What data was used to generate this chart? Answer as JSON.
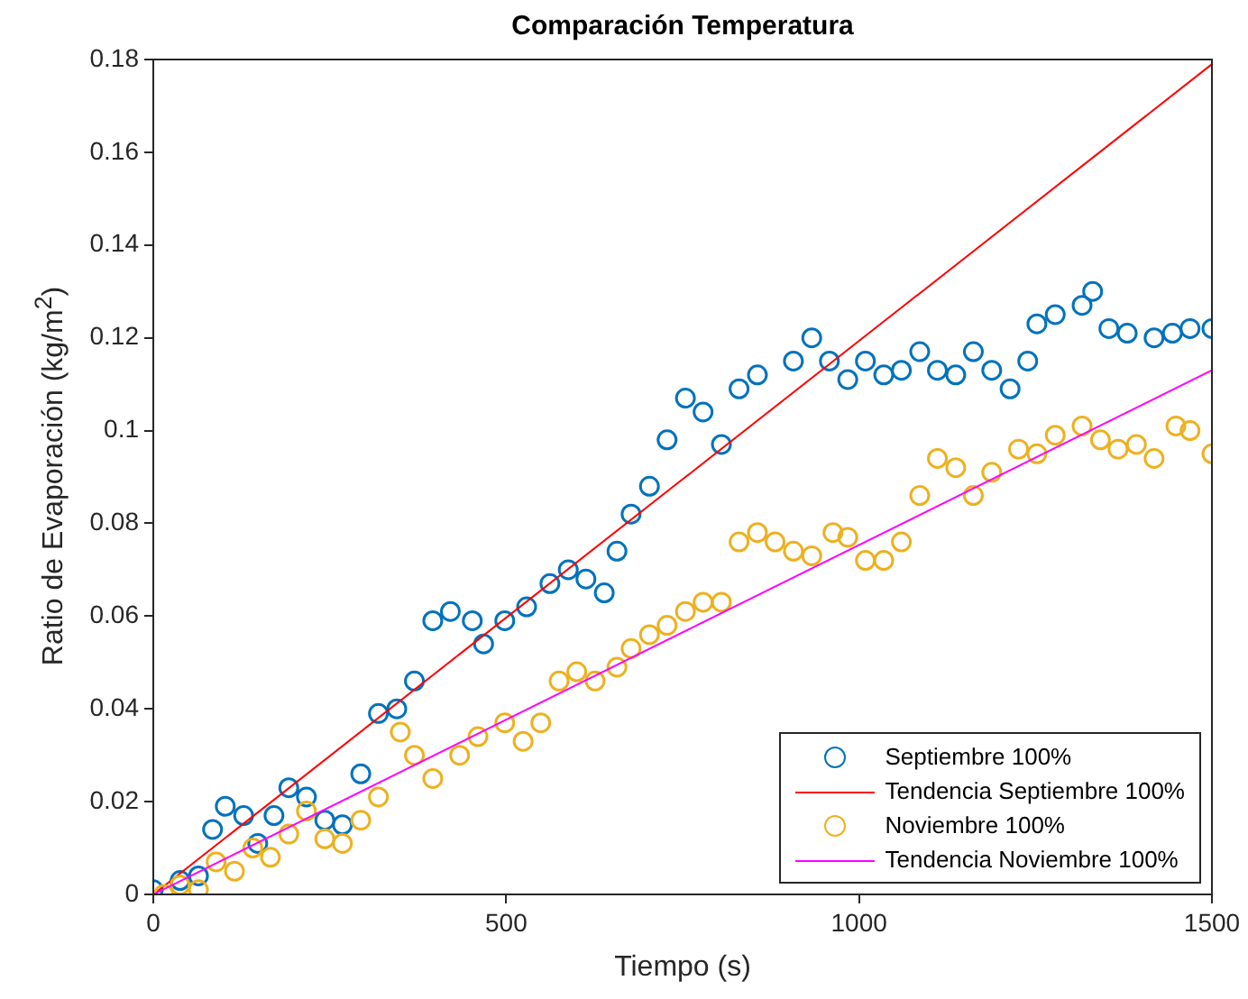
{
  "chart_data": {
    "type": "scatter",
    "title": "Comparación Temperatura",
    "xlabel": "Tiempo (s)",
    "ylabel": "Ratio de Evaporación (kg/m$^{2}$)",
    "xlim": [
      0,
      1500
    ],
    "xticks": [
      0,
      500,
      1000,
      1500
    ],
    "ylim": [
      0,
      0.18
    ],
    "yticks": [
      0,
      0.02,
      0.04,
      0.06,
      0.08,
      0.1,
      0.12,
      0.14,
      0.16,
      0.18
    ],
    "grid": false,
    "legend": "bottom right",
    "marker": "circle",
    "series": [
      {
        "name": "Septiembre 100%",
        "color": "#0072bd",
        "x": [
          0,
          38,
          64,
          84,
          102,
          128,
          148,
          171,
          192,
          217,
          243,
          268,
          294,
          319,
          345,
          370,
          396,
          421,
          452,
          468,
          498,
          529,
          562,
          588,
          613,
          639,
          657,
          677,
          703,
          728,
          754,
          779,
          805,
          830,
          856,
          907,
          933,
          958,
          984,
          1009,
          1035,
          1060,
          1086,
          1111,
          1137,
          1162,
          1188,
          1214,
          1239,
          1252,
          1278,
          1316,
          1331,
          1354,
          1380,
          1418,
          1444,
          1469,
          1500
        ],
        "values": [
          0.001,
          0.003,
          0.004,
          0.014,
          0.019,
          0.017,
          0.011,
          0.017,
          0.023,
          0.021,
          0.016,
          0.015,
          0.026,
          0.039,
          0.04,
          0.046,
          0.059,
          0.061,
          0.059,
          0.054,
          0.059,
          0.062,
          0.067,
          0.07,
          0.068,
          0.065,
          0.074,
          0.082,
          0.088,
          0.098,
          0.107,
          0.104,
          0.097,
          0.109,
          0.112,
          0.115,
          0.12,
          0.115,
          0.111,
          0.115,
          0.112,
          0.113,
          0.117,
          0.113,
          0.112,
          0.117,
          0.113,
          0.109,
          0.115,
          0.123,
          0.125,
          0.127,
          0.13,
          0.122,
          0.121,
          0.12,
          0.121,
          0.122,
          0.122
        ]
      },
      {
        "name": "Tendencia Septiembre 100%",
        "type": "line",
        "color": "#ff0000",
        "marker": "none",
        "x": [
          0,
          1500
        ],
        "values": [
          0,
          0.179
        ]
      },
      {
        "name": "Noviembre 100%",
        "color": "#edb120",
        "x": [
          15,
          38,
          64,
          89,
          115,
          141,
          166,
          192,
          217,
          243,
          268,
          294,
          319,
          350,
          370,
          396,
          434,
          460,
          498,
          524,
          549,
          575,
          600,
          626,
          657,
          677,
          703,
          728,
          754,
          779,
          805,
          830,
          856,
          881,
          907,
          933,
          963,
          984,
          1009,
          1035,
          1060,
          1086,
          1111,
          1137,
          1162,
          1188,
          1226,
          1252,
          1278,
          1316,
          1342,
          1367,
          1393,
          1418,
          1449,
          1469,
          1500
        ],
        "values": [
          0,
          0.002,
          0.001,
          0.007,
          0.005,
          0.01,
          0.008,
          0.013,
          0.018,
          0.012,
          0.011,
          0.016,
          0.021,
          0.035,
          0.03,
          0.025,
          0.03,
          0.034,
          0.037,
          0.033,
          0.037,
          0.046,
          0.048,
          0.046,
          0.049,
          0.053,
          0.056,
          0.058,
          0.061,
          0.063,
          0.063,
          0.076,
          0.078,
          0.076,
          0.074,
          0.073,
          0.078,
          0.077,
          0.072,
          0.072,
          0.076,
          0.086,
          0.094,
          0.092,
          0.086,
          0.091,
          0.096,
          0.095,
          0.099,
          0.101,
          0.098,
          0.096,
          0.097,
          0.094,
          0.101,
          0.1,
          0.095
        ]
      },
      {
        "name": "Tendencia Noviembre 100%",
        "type": "line",
        "color": "#ff00ff",
        "marker": "none",
        "x": [
          0,
          1500
        ],
        "values": [
          0,
          0.113
        ]
      }
    ]
  }
}
